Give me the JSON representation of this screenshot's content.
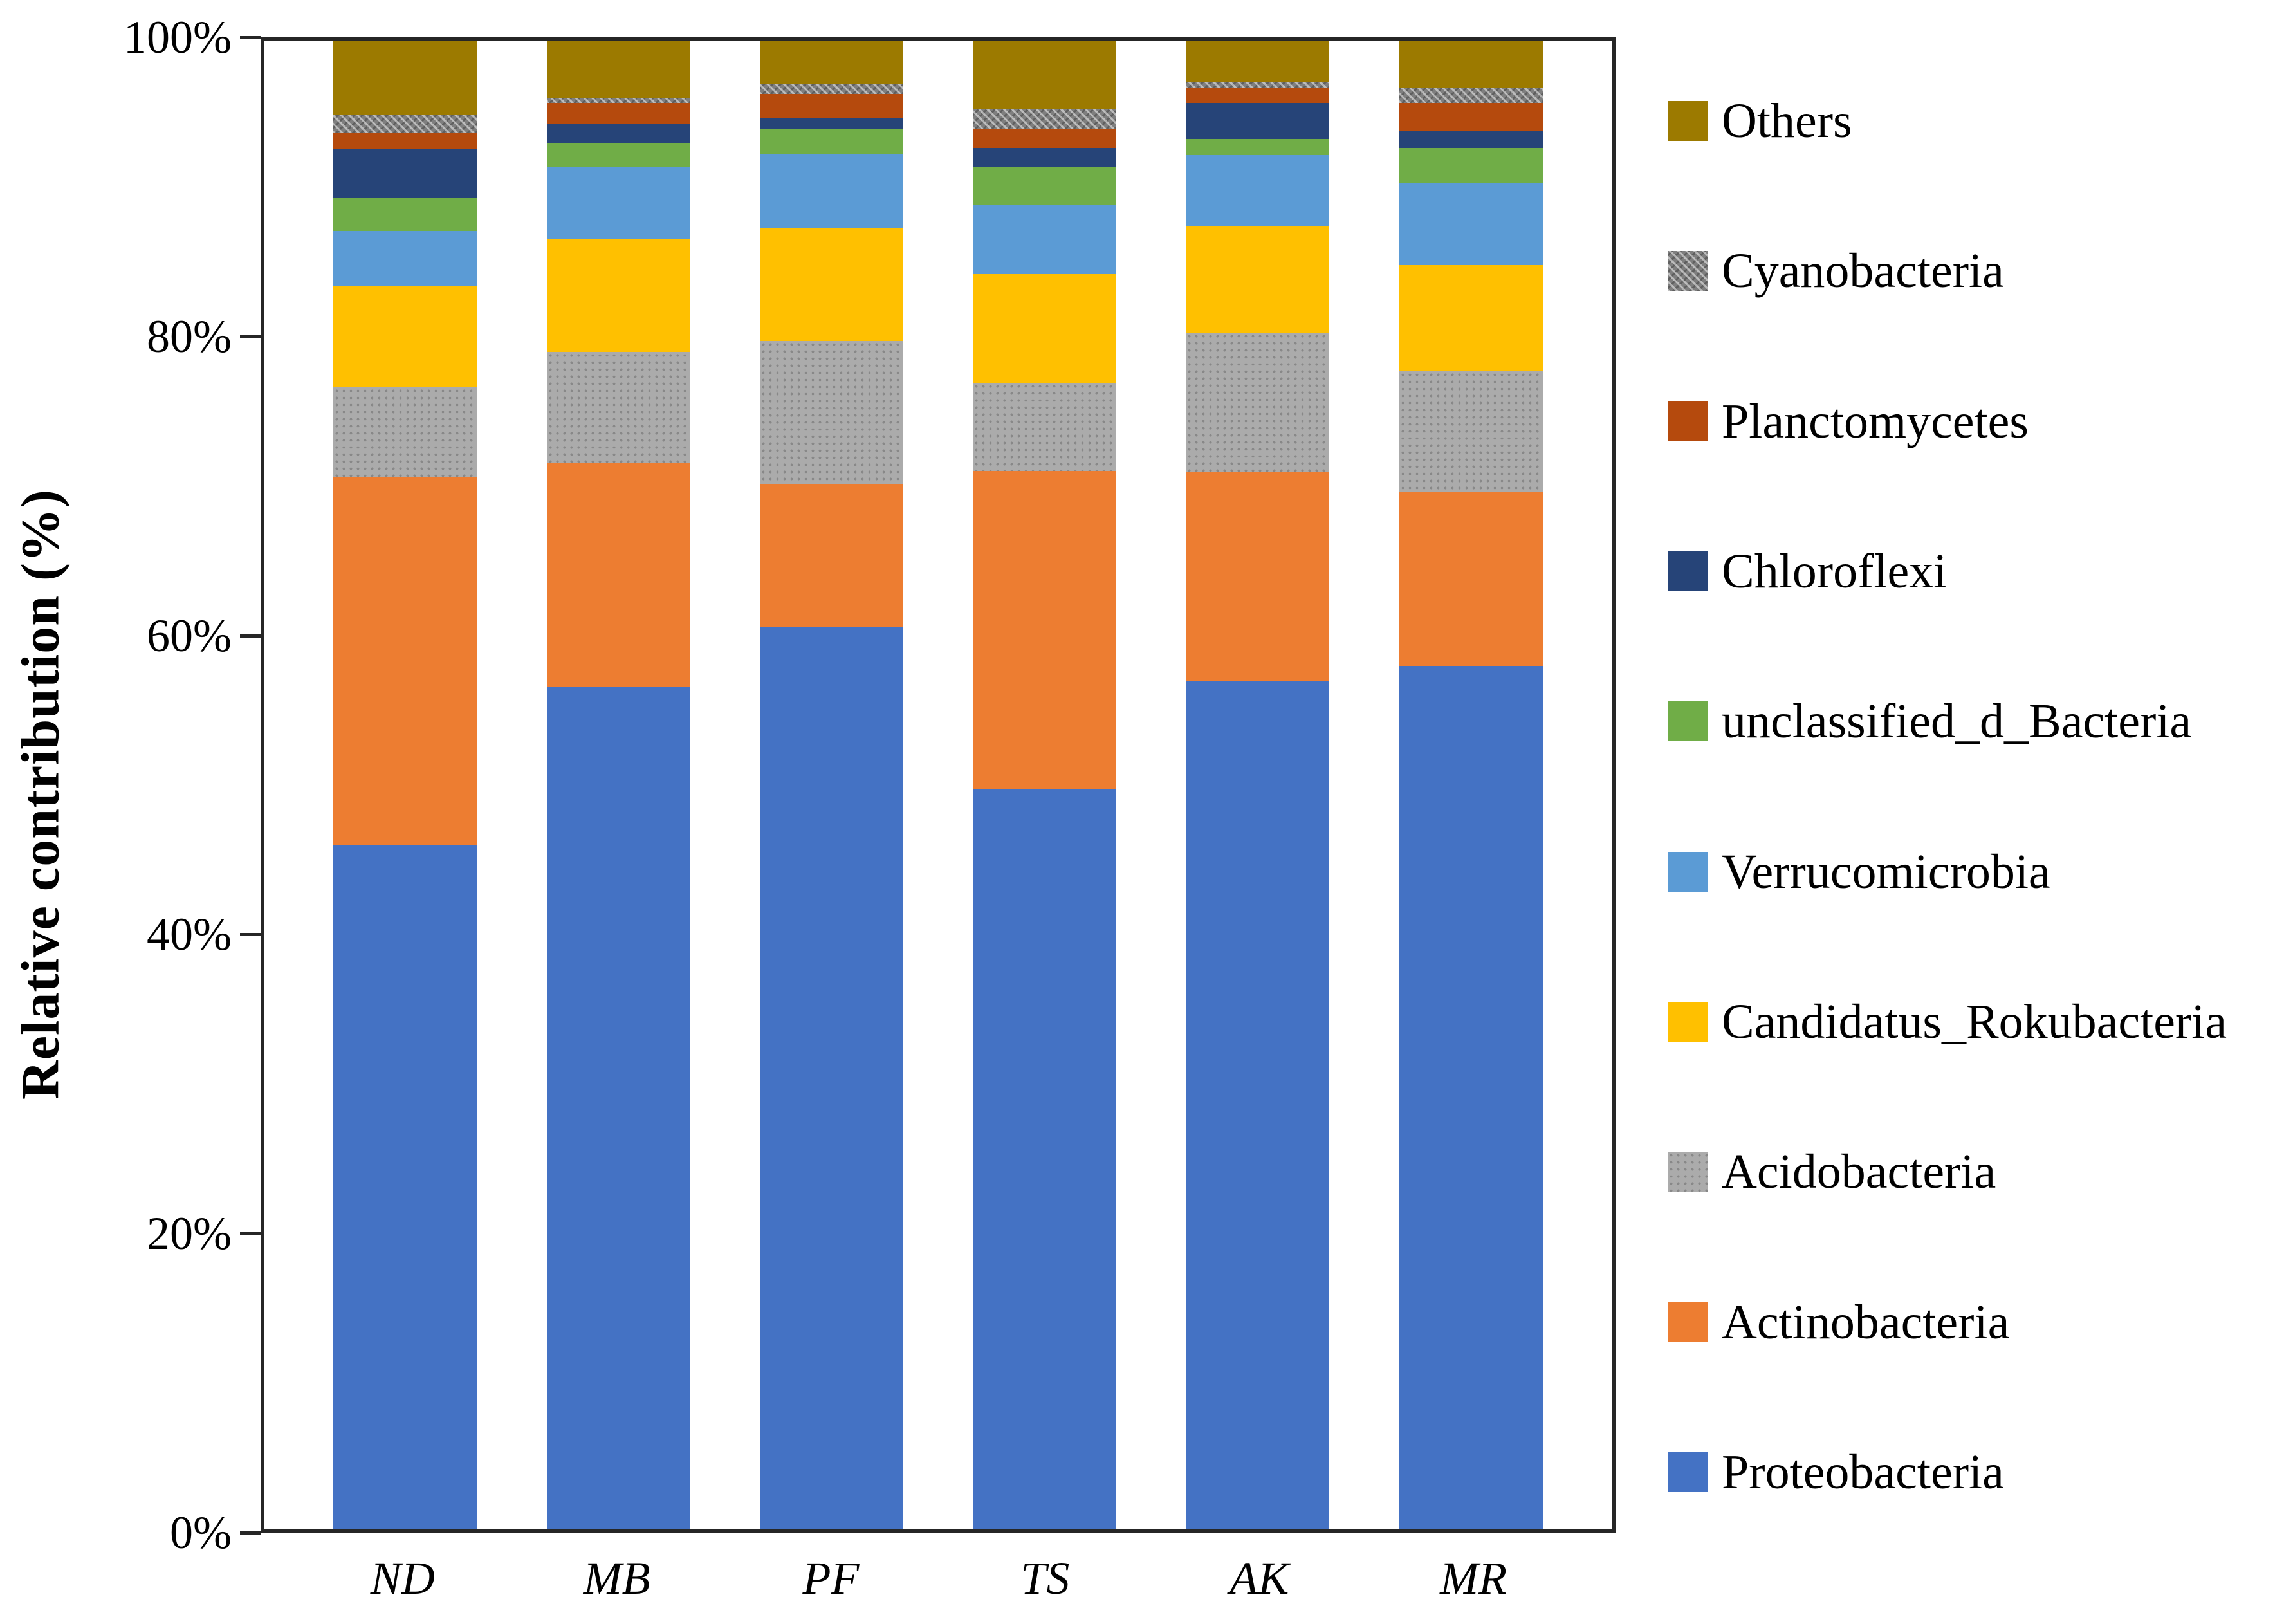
{
  "figure": {
    "y_axis_label": "Relative contribution (%)"
  },
  "chart_data": {
    "type": "bar",
    "stacked": true,
    "unit": "percent",
    "title": "",
    "xlabel": "",
    "ylabel": "Relative contribution (%)",
    "ylim": [
      0,
      100
    ],
    "grid": false,
    "legend_position": "right",
    "categories": [
      "ND",
      "MB",
      "PF",
      "TS",
      "AK",
      "MR"
    ],
    "y_ticks": [
      "100%",
      "80%",
      "60%",
      "40%",
      "20%",
      "0%"
    ],
    "y_tick_values": [
      100,
      80,
      60,
      40,
      20,
      0
    ],
    "series": [
      {
        "name": "Others",
        "color": "#9C7A00",
        "pattern": "solid",
        "values": [
          5.0,
          3.9,
          2.9,
          4.6,
          2.8,
          3.2
        ]
      },
      {
        "name": "Cyanobacteria",
        "color": "#7F7F7F",
        "pattern": "hatch",
        "values": [
          1.2,
          0.3,
          0.7,
          1.3,
          0.4,
          1.0
        ]
      },
      {
        "name": "Planctomycetes",
        "color": "#B54A0D",
        "pattern": "solid",
        "values": [
          1.1,
          1.4,
          1.6,
          1.3,
          1.0,
          1.9
        ]
      },
      {
        "name": "Chloroflexi",
        "color": "#264478",
        "pattern": "solid",
        "values": [
          3.3,
          1.3,
          0.7,
          1.3,
          2.4,
          1.1
        ]
      },
      {
        "name": "unclassified_d_Bacteria",
        "color": "#70AD47",
        "pattern": "solid",
        "values": [
          2.2,
          1.6,
          1.7,
          2.5,
          1.1,
          2.4
        ]
      },
      {
        "name": "Verrucomicrobia",
        "color": "#5B9BD5",
        "pattern": "solid",
        "values": [
          3.7,
          4.8,
          5.0,
          4.7,
          4.8,
          5.5
        ]
      },
      {
        "name": "Candidatus_Rokubacteria",
        "color": "#FFC000",
        "pattern": "solid",
        "values": [
          6.8,
          7.6,
          7.6,
          7.3,
          7.1,
          7.1
        ]
      },
      {
        "name": "Acidobacteria",
        "color": "#ABABAB",
        "pattern": "dots",
        "values": [
          6.0,
          7.5,
          9.6,
          5.9,
          9.4,
          8.1
        ]
      },
      {
        "name": "Actinobacteria",
        "color": "#ED7D31",
        "pattern": "solid",
        "values": [
          24.7,
          15.0,
          9.6,
          21.4,
          14.0,
          11.7
        ]
      },
      {
        "name": "Proteobacteria",
        "color": "#4472C4",
        "pattern": "solid",
        "values": [
          46.0,
          56.6,
          60.6,
          49.7,
          57.0,
          58.0
        ]
      }
    ]
  }
}
